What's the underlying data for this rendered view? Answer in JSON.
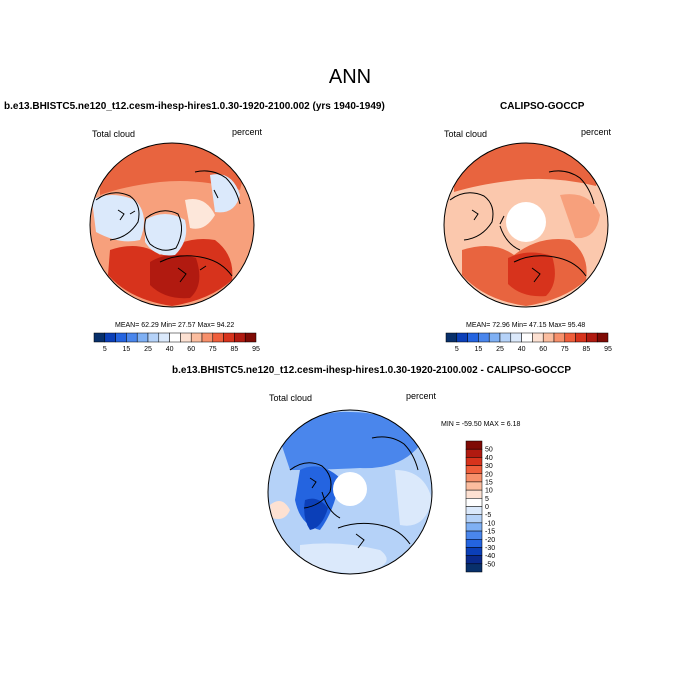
{
  "page": {
    "title": "ANN"
  },
  "panels": [
    {
      "id": "model",
      "title": "b.e13.BHISTC5.ne120_t12.cesm-ihesp-hires1.0.30-1920-2100.002 (yrs 1940-1949)",
      "left_label": "Total cloud",
      "right_label": "percent",
      "stats_text": "MEAN=  62.29  Min=  27.57  Max=  94.22",
      "colorbar": {
        "levels": [
          "5",
          "15",
          "25",
          "40",
          "60",
          "75",
          "85",
          "95"
        ],
        "colors": [
          "#08306b",
          "#0b3fb8",
          "#2464e0",
          "#4a86ec",
          "#7fb0f4",
          "#b5d2f8",
          "#dbe9fb",
          "#ffffff",
          "#fde1d2",
          "#fbbd9f",
          "#f7906b",
          "#ef5e3b",
          "#d7331c",
          "#b11a10",
          "#7f0b05"
        ]
      }
    },
    {
      "id": "obs",
      "title": "CALIPSO-GOCCP",
      "left_label": "Total cloud",
      "right_label": "percent",
      "stats_text": "MEAN=  72.96  Min=  47.15  Max=  95.48",
      "colorbar": {
        "levels": [
          "5",
          "15",
          "25",
          "40",
          "60",
          "75",
          "85",
          "95"
        ],
        "colors": [
          "#08306b",
          "#0b3fb8",
          "#2464e0",
          "#4a86ec",
          "#7fb0f4",
          "#b5d2f8",
          "#dbe9fb",
          "#ffffff",
          "#fde1d2",
          "#fbbd9f",
          "#f7906b",
          "#ef5e3b",
          "#d7331c",
          "#b11a10",
          "#7f0b05"
        ]
      }
    },
    {
      "id": "diff",
      "title": "b.e13.BHISTC5.ne120_t12.cesm-ihesp-hires1.0.30-1920-2100.002 - CALIPSO-GOCCP",
      "left_label": "Total cloud",
      "right_label": "percent",
      "stats_text": "MIN = -59.50  MAX =   6.18",
      "colorbar": {
        "levels": [
          "50",
          "40",
          "30",
          "20",
          "15",
          "10",
          "5",
          "0",
          "-5",
          "-10",
          "-15",
          "-20",
          "-30",
          "-40",
          "-50"
        ],
        "colors": [
          "#7f0b05",
          "#b11a10",
          "#d7331c",
          "#ef5e3b",
          "#f7906b",
          "#fbbd9f",
          "#fde1d2",
          "#ffffff",
          "#dbe9fb",
          "#b5d2f8",
          "#7fb0f4",
          "#4a86ec",
          "#2464e0",
          "#0b3fb8",
          "#0a2a8c",
          "#08306b"
        ]
      }
    }
  ],
  "map_colors": {
    "ocean_high": "#e8643f",
    "ocean_mid": "#f7a07c",
    "ocean_low": "#fbc8ad",
    "land_light": "#dbe9fb",
    "land_pale": "#fde7da",
    "hole": "#ffffff",
    "diff_base": "#4a86ec",
    "diff_dark": "#2464e0",
    "diff_light": "#b5d2f8",
    "diff_pale": "#dbe9fb",
    "coast": "#000000"
  }
}
